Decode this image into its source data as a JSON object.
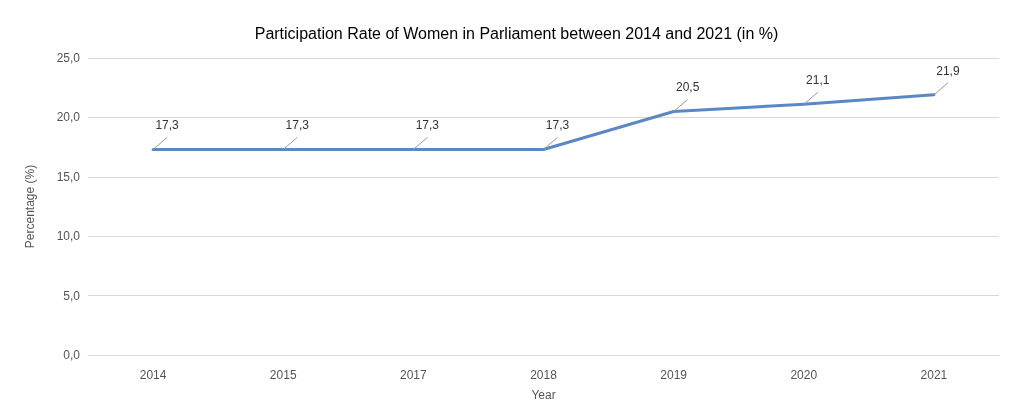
{
  "chart_data": {
    "type": "line",
    "title": "Participation Rate of Women in Parliament between 2014 and 2021 (in %)",
    "xlabel": "Year",
    "ylabel": "Percentage (%)",
    "categories": [
      "2014",
      "2015",
      "2017",
      "2018",
      "2019",
      "2020",
      "2021"
    ],
    "series": [
      {
        "color": "#5b87c5",
        "values": [
          17.3,
          17.3,
          17.3,
          17.3,
          20.5,
          21.1,
          21.9
        ],
        "value_labels": [
          "17,3",
          "17,3",
          "17,3",
          "17,3",
          "20,5",
          "21,1",
          "21,9"
        ]
      }
    ],
    "ylim": [
      0,
      25
    ],
    "yticks": [
      {
        "value": 0,
        "label": "0,0"
      },
      {
        "value": 5,
        "label": "5,0"
      },
      {
        "value": 10,
        "label": "10,0"
      },
      {
        "value": 15,
        "label": "15,0"
      },
      {
        "value": 20,
        "label": "20,0"
      },
      {
        "value": 25,
        "label": "25,0"
      }
    ],
    "grid": "y",
    "marker": "none",
    "line_style": "solid"
  }
}
